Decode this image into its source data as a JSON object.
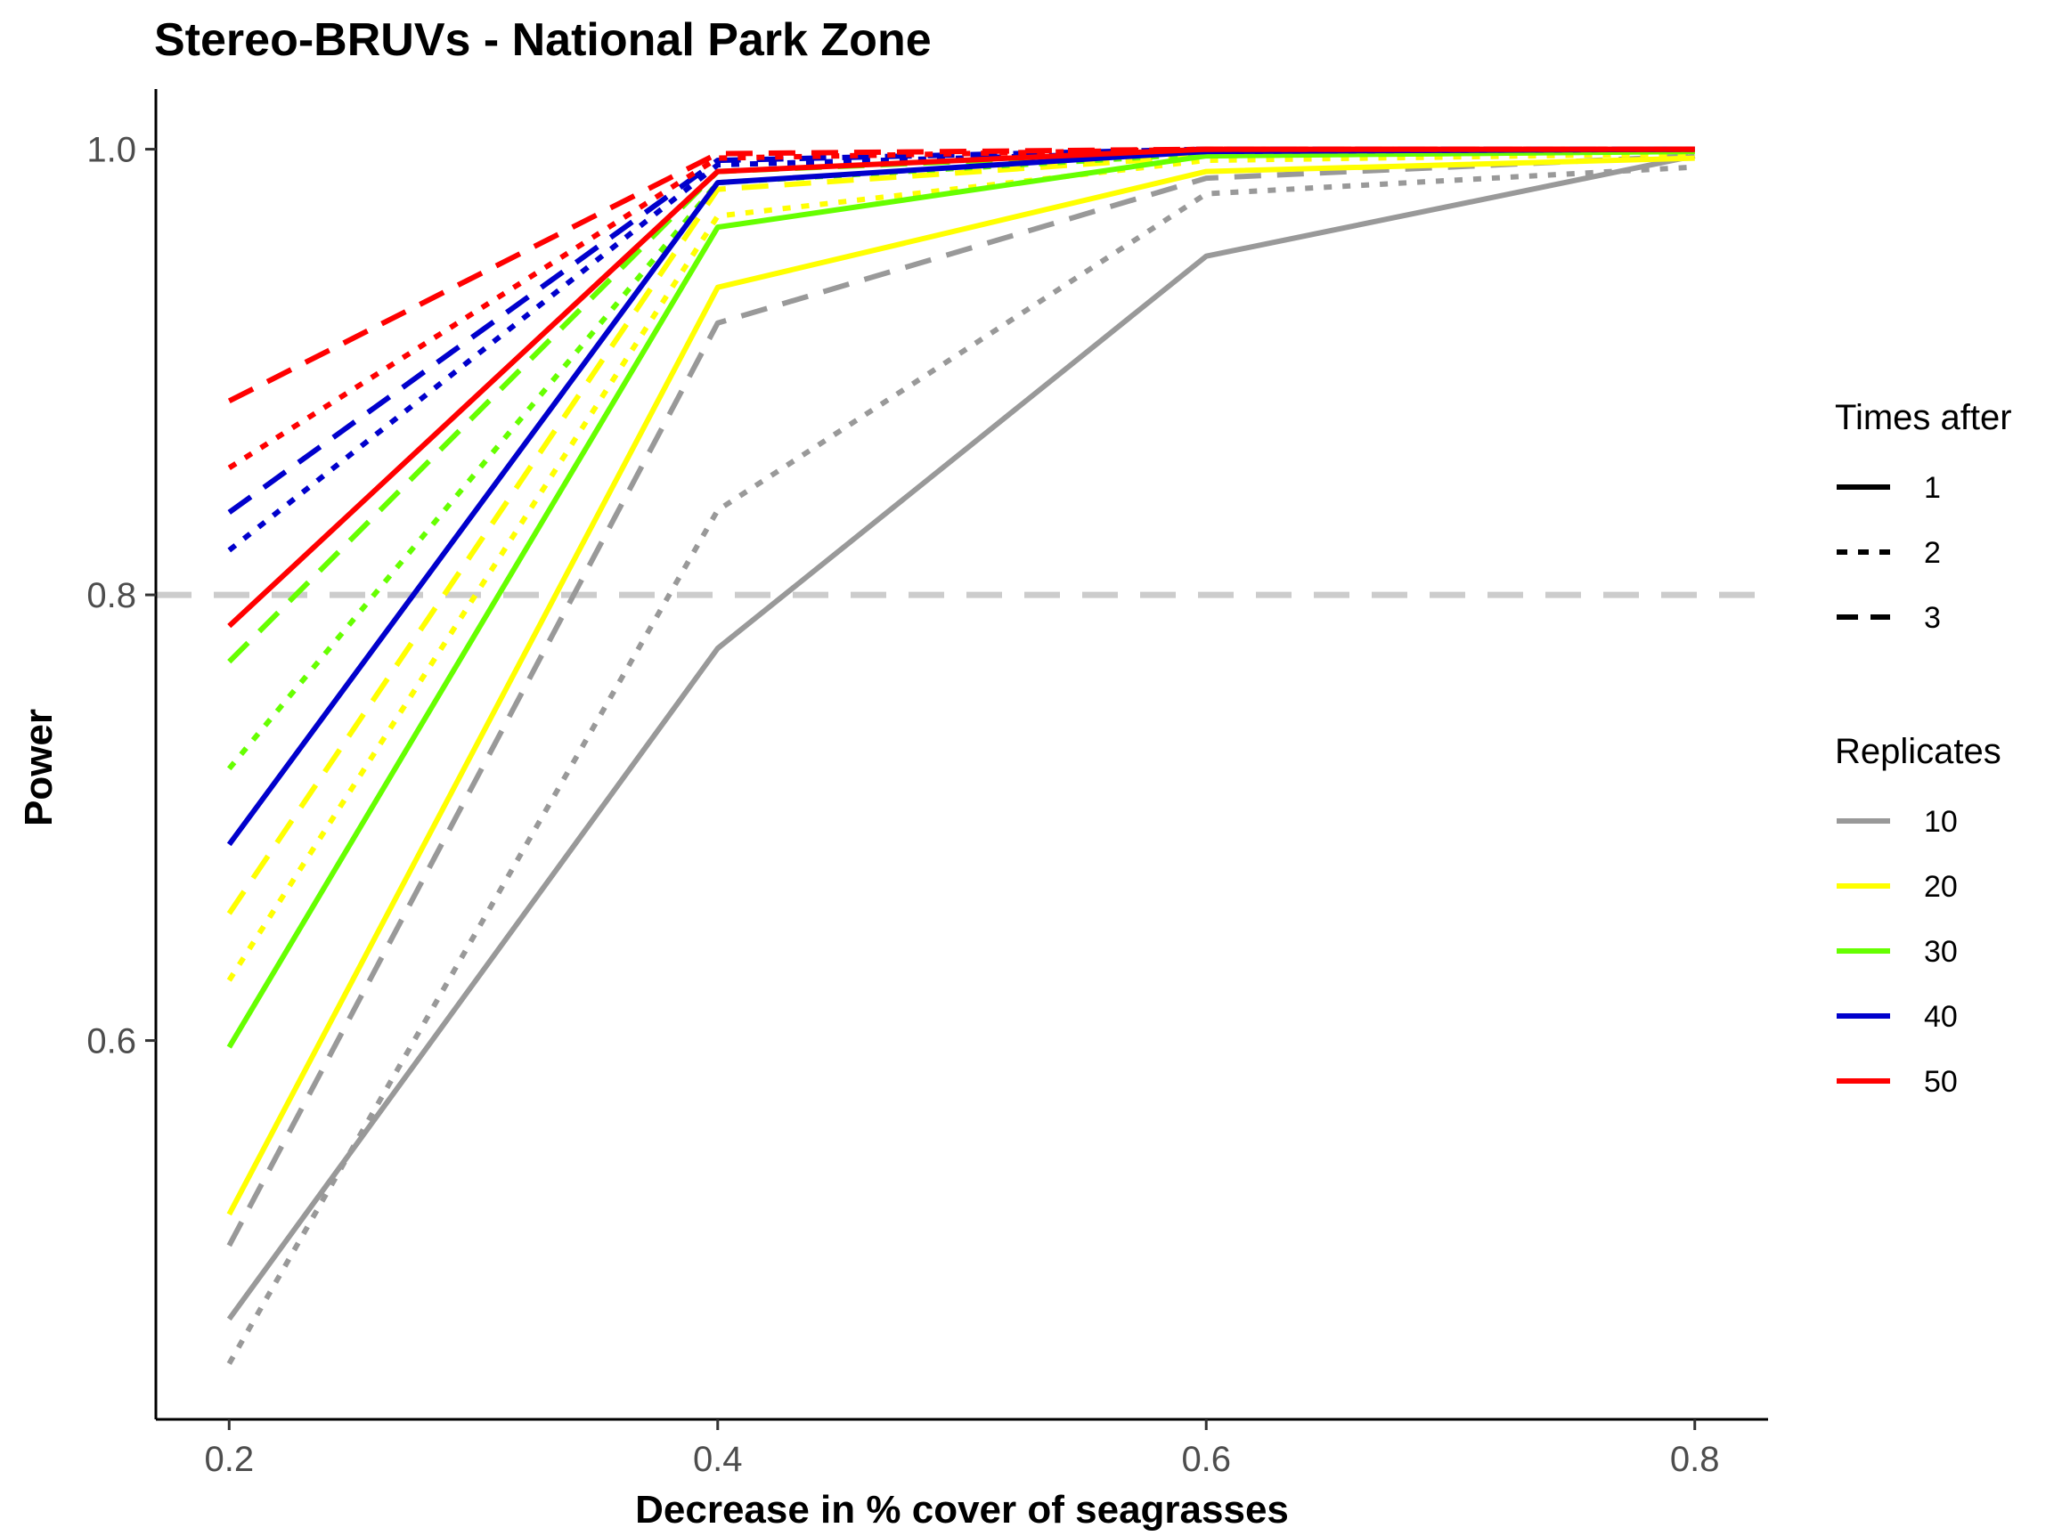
{
  "chart_data": {
    "type": "line",
    "title": "Stereo-BRUVs - National Park Zone",
    "xlabel": "Decrease in % cover of seagrasses",
    "ylabel": "Power",
    "x": [
      0.2,
      0.4,
      0.6,
      0.8
    ],
    "x_ticks": [
      "0.2",
      "0.4",
      "0.6",
      "0.8"
    ],
    "y_ticks": [
      "0.6",
      "0.8",
      "1.0"
    ],
    "xlim": [
      0.17,
      0.83
    ],
    "ylim": [
      0.43,
      1.027
    ],
    "reference_line": {
      "y": 0.8,
      "style": "dashed",
      "color": "#cccccc"
    },
    "grid": false,
    "legend_position": "right",
    "legend_times": {
      "title": "Times after",
      "entries": [
        {
          "label": "1",
          "linetype": "solid"
        },
        {
          "label": "2",
          "linetype": "dotted"
        },
        {
          "label": "3",
          "linetype": "dashed"
        }
      ]
    },
    "legend_replicates": {
      "title": "Replicates",
      "entries": [
        {
          "label": "10",
          "color": "#999999"
        },
        {
          "label": "20",
          "color": "#ffff00"
        },
        {
          "label": "30",
          "color": "#66ff00"
        },
        {
          "label": "40",
          "color": "#0000cc"
        },
        {
          "label": "50",
          "color": "#ff0000"
        }
      ]
    },
    "series": [
      {
        "replicates": "10",
        "times_after": "1",
        "values": [
          0.475,
          0.776,
          0.952,
          0.997
        ]
      },
      {
        "replicates": "10",
        "times_after": "2",
        "values": [
          0.455,
          0.838,
          0.98,
          0.992
        ]
      },
      {
        "replicates": "10",
        "times_after": "3",
        "values": [
          0.508,
          0.922,
          0.987,
          0.997
        ]
      },
      {
        "replicates": "20",
        "times_after": "1",
        "values": [
          0.522,
          0.938,
          0.99,
          0.996
        ]
      },
      {
        "replicates": "20",
        "times_after": "2",
        "values": [
          0.627,
          0.97,
          0.995,
          0.998
        ]
      },
      {
        "replicates": "20",
        "times_after": "3",
        "values": [
          0.657,
          0.982,
          0.997,
          0.999
        ]
      },
      {
        "replicates": "30",
        "times_after": "1",
        "values": [
          0.597,
          0.965,
          0.997,
          0.999
        ]
      },
      {
        "replicates": "30",
        "times_after": "2",
        "values": [
          0.722,
          0.985,
          0.998,
          0.999
        ]
      },
      {
        "replicates": "30",
        "times_after": "3",
        "values": [
          0.77,
          0.99,
          0.999,
          1.0
        ]
      },
      {
        "replicates": "40",
        "times_after": "1",
        "values": [
          0.688,
          0.985,
          0.999,
          1.0
        ]
      },
      {
        "replicates": "40",
        "times_after": "2",
        "values": [
          0.82,
          0.993,
          0.999,
          1.0
        ]
      },
      {
        "replicates": "40",
        "times_after": "3",
        "values": [
          0.837,
          0.995,
          1.0,
          1.0
        ]
      },
      {
        "replicates": "50",
        "times_after": "1",
        "values": [
          0.786,
          0.99,
          1.0,
          1.0
        ]
      },
      {
        "replicates": "50",
        "times_after": "2",
        "values": [
          0.857,
          0.996,
          1.0,
          1.0
        ]
      },
      {
        "replicates": "50",
        "times_after": "3",
        "values": [
          0.887,
          0.998,
          1.0,
          1.0
        ]
      }
    ]
  }
}
